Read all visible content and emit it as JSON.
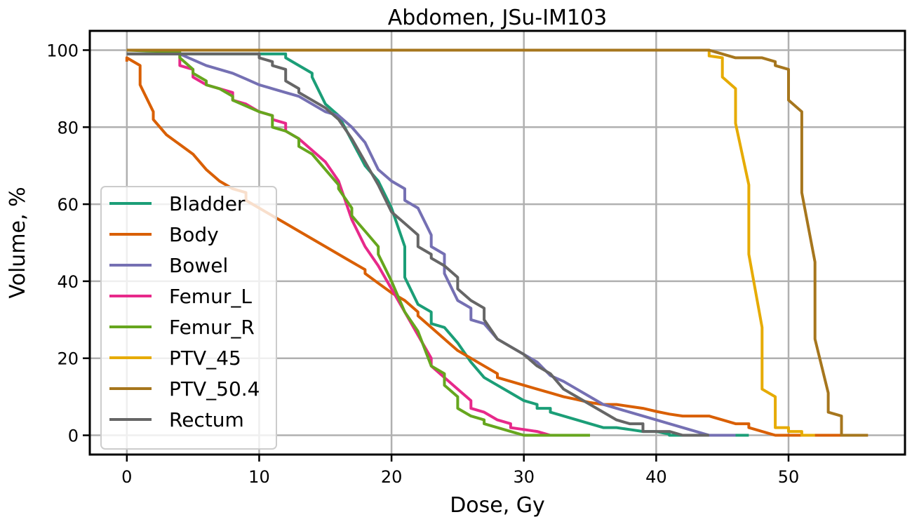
{
  "chart_data": {
    "type": "line",
    "title": "Abdomen, JSu-IM103",
    "xlabel": "Dose, Gy",
    "ylabel": "Volume, %",
    "xlim": [
      -2.8,
      58.8
    ],
    "ylim": [
      -5,
      105
    ],
    "xticks": [
      0,
      10,
      20,
      30,
      40,
      50
    ],
    "yticks": [
      0,
      20,
      40,
      60,
      80,
      100
    ],
    "grid": true,
    "legend_position": "lower-left",
    "series": [
      {
        "name": "Bladder",
        "color": "#1b9e77",
        "points": [
          [
            0,
            99
          ],
          [
            12,
            99
          ],
          [
            12,
            98
          ],
          [
            12.5,
            97
          ],
          [
            13,
            96
          ],
          [
            14,
            94
          ],
          [
            14,
            93
          ],
          [
            15,
            86
          ],
          [
            16,
            83
          ],
          [
            18,
            70
          ],
          [
            19,
            66
          ],
          [
            20,
            59
          ],
          [
            21,
            49
          ],
          [
            21,
            41
          ],
          [
            22,
            34
          ],
          [
            23,
            32
          ],
          [
            23,
            29
          ],
          [
            24,
            28
          ],
          [
            25,
            24
          ],
          [
            26,
            19
          ],
          [
            27,
            15
          ],
          [
            28,
            13
          ],
          [
            29,
            11
          ],
          [
            30,
            9
          ],
          [
            31,
            8
          ],
          [
            31,
            7
          ],
          [
            32,
            7
          ],
          [
            32,
            6
          ],
          [
            33,
            5
          ],
          [
            34,
            4
          ],
          [
            35,
            3
          ],
          [
            36,
            2
          ],
          [
            37,
            2
          ],
          [
            38,
            1.5
          ],
          [
            39,
            1
          ],
          [
            40,
            1
          ],
          [
            41,
            0.3
          ],
          [
            41,
            0
          ],
          [
            47,
            0
          ]
        ]
      },
      {
        "name": "Body",
        "color": "#d95f02",
        "points": [
          [
            0,
            97
          ],
          [
            0,
            98
          ],
          [
            1,
            96
          ],
          [
            1,
            91
          ],
          [
            2,
            84
          ],
          [
            2,
            82
          ],
          [
            3,
            78
          ],
          [
            4,
            75.5
          ],
          [
            5,
            73
          ],
          [
            6,
            69
          ],
          [
            7,
            66
          ],
          [
            8,
            64
          ],
          [
            9,
            63
          ],
          [
            9,
            61
          ],
          [
            10,
            59
          ],
          [
            11,
            57
          ],
          [
            12,
            55
          ],
          [
            13,
            53
          ],
          [
            14,
            51
          ],
          [
            15,
            49
          ],
          [
            16,
            47
          ],
          [
            17,
            45
          ],
          [
            18,
            43
          ],
          [
            18,
            42
          ],
          [
            19,
            39.5
          ],
          [
            20,
            37
          ],
          [
            21,
            35
          ],
          [
            22,
            32
          ],
          [
            22,
            31
          ],
          [
            23,
            28
          ],
          [
            24,
            25
          ],
          [
            25,
            22
          ],
          [
            26,
            20
          ],
          [
            27,
            18
          ],
          [
            28,
            16
          ],
          [
            28,
            15
          ],
          [
            29,
            14
          ],
          [
            30,
            13
          ],
          [
            31,
            12
          ],
          [
            32,
            11
          ],
          [
            33,
            10
          ],
          [
            34,
            9.3
          ],
          [
            35,
            8.5
          ],
          [
            36,
            8
          ],
          [
            37,
            8
          ],
          [
            38,
            7.5
          ],
          [
            39,
            7
          ],
          [
            40,
            6.2
          ],
          [
            41,
            5.5
          ],
          [
            42,
            5
          ],
          [
            43,
            5
          ],
          [
            44,
            5
          ],
          [
            45,
            4
          ],
          [
            46,
            3
          ],
          [
            47,
            3
          ],
          [
            47,
            2
          ],
          [
            48,
            1
          ],
          [
            49,
            0
          ],
          [
            56,
            0
          ]
        ]
      },
      {
        "name": "Bowel",
        "color": "#7570b3",
        "points": [
          [
            0,
            99
          ],
          [
            4,
            99
          ],
          [
            5,
            97.5
          ],
          [
            6,
            96
          ],
          [
            7,
            95
          ],
          [
            8,
            94
          ],
          [
            9,
            92.5
          ],
          [
            10,
            91
          ],
          [
            11,
            90
          ],
          [
            12,
            89
          ],
          [
            13,
            88
          ],
          [
            14,
            86
          ],
          [
            15,
            84
          ],
          [
            16,
            83
          ],
          [
            17,
            80
          ],
          [
            18,
            76
          ],
          [
            19,
            69
          ],
          [
            20,
            66
          ],
          [
            21,
            64
          ],
          [
            21,
            61
          ],
          [
            22,
            59
          ],
          [
            23,
            52
          ],
          [
            23,
            49
          ],
          [
            24,
            47
          ],
          [
            24,
            42
          ],
          [
            25,
            35
          ],
          [
            26,
            33
          ],
          [
            26,
            30
          ],
          [
            27,
            29
          ],
          [
            28,
            25
          ],
          [
            29,
            23
          ],
          [
            30,
            21
          ],
          [
            31,
            19
          ],
          [
            32,
            15.5
          ],
          [
            33,
            14
          ],
          [
            34,
            12
          ],
          [
            35,
            10
          ],
          [
            36,
            8
          ],
          [
            37,
            7
          ],
          [
            38,
            6
          ],
          [
            39,
            5
          ],
          [
            40,
            4
          ],
          [
            41,
            3
          ],
          [
            42,
            2
          ],
          [
            43,
            1
          ],
          [
            44,
            0
          ],
          [
            46,
            0
          ]
        ]
      },
      {
        "name": "Femur_L",
        "color": "#e7298a",
        "points": [
          [
            0,
            100
          ],
          [
            3,
            100
          ],
          [
            3,
            99.5
          ],
          [
            4,
            99
          ],
          [
            4,
            96
          ],
          [
            5,
            95
          ],
          [
            5,
            93
          ],
          [
            6,
            91
          ],
          [
            7,
            90
          ],
          [
            8,
            89
          ],
          [
            8,
            87
          ],
          [
            9,
            86
          ],
          [
            10,
            84
          ],
          [
            11,
            83
          ],
          [
            11,
            82
          ],
          [
            12,
            81
          ],
          [
            12,
            79
          ],
          [
            13,
            77
          ],
          [
            14,
            74
          ],
          [
            15,
            71
          ],
          [
            16,
            66
          ],
          [
            17,
            56
          ],
          [
            18,
            49
          ],
          [
            19,
            44
          ],
          [
            20,
            38
          ],
          [
            21,
            32
          ],
          [
            22,
            26
          ],
          [
            23,
            20
          ],
          [
            23,
            18
          ],
          [
            24,
            15
          ],
          [
            25,
            12
          ],
          [
            26,
            9
          ],
          [
            26,
            7
          ],
          [
            27,
            6
          ],
          [
            28,
            4
          ],
          [
            29,
            3
          ],
          [
            29,
            2
          ],
          [
            30,
            1.5
          ],
          [
            31,
            1
          ],
          [
            32,
            0
          ],
          [
            33,
            0
          ]
        ]
      },
      {
        "name": "Femur_R",
        "color": "#66a61e",
        "points": [
          [
            0,
            100
          ],
          [
            4,
            99.5
          ],
          [
            4,
            98
          ],
          [
            5,
            95
          ],
          [
            5,
            94
          ],
          [
            6,
            92
          ],
          [
            6,
            91
          ],
          [
            7,
            90
          ],
          [
            8,
            88
          ],
          [
            8,
            87
          ],
          [
            9,
            85.5
          ],
          [
            10,
            84
          ],
          [
            11,
            83
          ],
          [
            11,
            80
          ],
          [
            12,
            79
          ],
          [
            13,
            77
          ],
          [
            13,
            75
          ],
          [
            14,
            73
          ],
          [
            15,
            69
          ],
          [
            16,
            65
          ],
          [
            16,
            64
          ],
          [
            17,
            59
          ],
          [
            17,
            57
          ],
          [
            18,
            53
          ],
          [
            19,
            49
          ],
          [
            19,
            47
          ],
          [
            20,
            40
          ],
          [
            21,
            32
          ],
          [
            22,
            27
          ],
          [
            23,
            18
          ],
          [
            24,
            16
          ],
          [
            24,
            13
          ],
          [
            25,
            10
          ],
          [
            25,
            7
          ],
          [
            26,
            5
          ],
          [
            27,
            4
          ],
          [
            27,
            3
          ],
          [
            28,
            2
          ],
          [
            29,
            1
          ],
          [
            30,
            0
          ],
          [
            35,
            0
          ]
        ]
      },
      {
        "name": "PTV_45",
        "color": "#e6ab02",
        "points": [
          [
            0,
            100
          ],
          [
            44,
            100
          ],
          [
            44,
            98.5
          ],
          [
            45,
            98
          ],
          [
            45,
            93
          ],
          [
            46,
            90
          ],
          [
            46,
            81
          ],
          [
            47,
            65
          ],
          [
            47,
            47
          ],
          [
            48,
            28
          ],
          [
            48,
            12
          ],
          [
            49,
            10
          ],
          [
            49,
            2
          ],
          [
            50,
            2
          ],
          [
            50,
            1
          ],
          [
            51,
            1
          ],
          [
            51,
            0
          ],
          [
            52,
            0
          ]
        ]
      },
      {
        "name": "PTV_50.4",
        "color": "#a6761d",
        "points": [
          [
            0,
            100
          ],
          [
            44,
            100
          ],
          [
            45,
            99
          ],
          [
            46,
            98
          ],
          [
            47,
            98
          ],
          [
            48,
            98
          ],
          [
            49,
            97
          ],
          [
            49,
            96
          ],
          [
            50,
            95
          ],
          [
            50,
            87
          ],
          [
            51,
            84
          ],
          [
            51,
            63
          ],
          [
            52,
            45
          ],
          [
            52,
            25
          ],
          [
            53,
            11
          ],
          [
            53,
            6
          ],
          [
            54,
            5
          ],
          [
            54,
            0
          ],
          [
            56,
            0
          ]
        ]
      },
      {
        "name": "Rectum",
        "color": "#666666",
        "points": [
          [
            0,
            99
          ],
          [
            10,
            99
          ],
          [
            10,
            98
          ],
          [
            11,
            97
          ],
          [
            11,
            96
          ],
          [
            12,
            95
          ],
          [
            12,
            92
          ],
          [
            13,
            90
          ],
          [
            13,
            89
          ],
          [
            14,
            87
          ],
          [
            15,
            85
          ],
          [
            16,
            82
          ],
          [
            17,
            77
          ],
          [
            18,
            71
          ],
          [
            19,
            65
          ],
          [
            20,
            58
          ],
          [
            21,
            55
          ],
          [
            22,
            52
          ],
          [
            22,
            49
          ],
          [
            23,
            47
          ],
          [
            23,
            46
          ],
          [
            24,
            44
          ],
          [
            25,
            41
          ],
          [
            25,
            38
          ],
          [
            26,
            35
          ],
          [
            27,
            33
          ],
          [
            27,
            30
          ],
          [
            28,
            25
          ],
          [
            29,
            23
          ],
          [
            30,
            21
          ],
          [
            31,
            18
          ],
          [
            32,
            16
          ],
          [
            33,
            12
          ],
          [
            34,
            10
          ],
          [
            35,
            8
          ],
          [
            36,
            6
          ],
          [
            37,
            4
          ],
          [
            38,
            3
          ],
          [
            39,
            3
          ],
          [
            39,
            1
          ],
          [
            40,
            1
          ],
          [
            41,
            1
          ],
          [
            42,
            0
          ],
          [
            44,
            0
          ]
        ]
      }
    ]
  }
}
